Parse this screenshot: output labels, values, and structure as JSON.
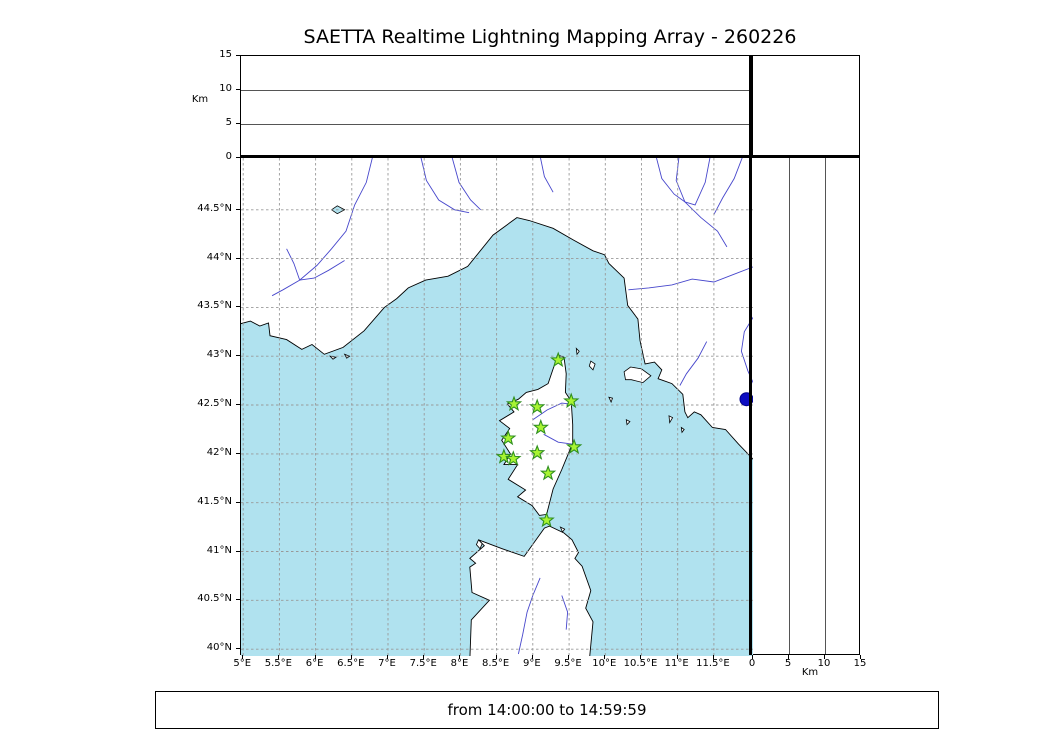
{
  "title": "SAETTA Realtime Lightning Mapping Array - 260226",
  "footer": {
    "text": "from 14:00:00 to 14:59:59"
  },
  "axes": {
    "km_label_left": "Km",
    "km_label_bottom": "Km",
    "alt_max": 15,
    "alt_ticks": [
      {
        "value": 0,
        "label": "0"
      },
      {
        "value": 5,
        "label": "5"
      },
      {
        "value": 10,
        "label": "10"
      },
      {
        "value": 15,
        "label": "15"
      }
    ],
    "alt_ref_lines": [
      5,
      10
    ],
    "lon_ticks": [
      {
        "value": 5,
        "label": "5°E"
      },
      {
        "value": 5.5,
        "label": "5.5°E"
      },
      {
        "value": 6,
        "label": "6°E"
      },
      {
        "value": 6.5,
        "label": "6.5°E"
      },
      {
        "value": 7,
        "label": "7°E"
      },
      {
        "value": 7.5,
        "label": "7.5°E"
      },
      {
        "value": 8,
        "label": "8°E"
      },
      {
        "value": 8.5,
        "label": "8.5°E"
      },
      {
        "value": 9,
        "label": "9°E"
      },
      {
        "value": 9.5,
        "label": "9.5°E"
      },
      {
        "value": 10,
        "label": "10°E"
      },
      {
        "value": 10.5,
        "label": "10.5°E"
      },
      {
        "value": 11,
        "label": "11°E"
      },
      {
        "value": 11.5,
        "label": "11.5°E"
      }
    ],
    "lat_ticks": [
      {
        "value": 40,
        "label": "40°N"
      },
      {
        "value": 40.5,
        "label": "40.5°N"
      },
      {
        "value": 41,
        "label": "41°N"
      },
      {
        "value": 41.5,
        "label": "41.5°N"
      },
      {
        "value": 42,
        "label": "42°N"
      },
      {
        "value": 42.5,
        "label": "42.5°N"
      },
      {
        "value": 43,
        "label": "43°N"
      },
      {
        "value": 43.5,
        "label": "43.5°N"
      },
      {
        "value": 44,
        "label": "44°N"
      },
      {
        "value": 44.5,
        "label": "44.5°N"
      }
    ]
  },
  "map": {
    "lon_min": 4.97,
    "lon_max": 12.04,
    "lat_min": 39.93,
    "lat_max": 45.03
  },
  "colors": {
    "sea": "#b0e2ef",
    "land": "#ffffff",
    "coast": "#000000",
    "river": "#4747cc",
    "grid": "#999999",
    "ref_line": "#555555",
    "station_fill": "#a8f432",
    "station_edge": "#2f8f1f",
    "source_dot": "#0d0dc2",
    "frame": "#000000"
  },
  "chart_data": {
    "type": "map-scatter",
    "title": "SAETTA Realtime Lightning Mapping Array - 260226",
    "lon_range": [
      5,
      12
    ],
    "lat_range": [
      40,
      45
    ],
    "altitude_axis_km": {
      "min": 0,
      "max": 15,
      "ticks": [
        0,
        5,
        10,
        15
      ]
    },
    "time_window": {
      "from": "14:00:00",
      "to": "14:59:59"
    },
    "stations": [
      {
        "lon": 9.35,
        "lat": 42.96
      },
      {
        "lon": 8.74,
        "lat": 42.51
      },
      {
        "lon": 9.06,
        "lat": 42.48
      },
      {
        "lon": 9.53,
        "lat": 42.54
      },
      {
        "lon": 9.11,
        "lat": 42.27
      },
      {
        "lon": 8.66,
        "lat": 42.16
      },
      {
        "lon": 9.57,
        "lat": 42.07
      },
      {
        "lon": 8.6,
        "lat": 41.97
      },
      {
        "lon": 8.73,
        "lat": 41.95
      },
      {
        "lon": 9.06,
        "lat": 42.01
      },
      {
        "lon": 9.21,
        "lat": 41.8
      },
      {
        "lon": 9.19,
        "lat": 41.32
      }
    ],
    "source_point": {
      "lon": 11.95,
      "lat": 42.56
    }
  }
}
